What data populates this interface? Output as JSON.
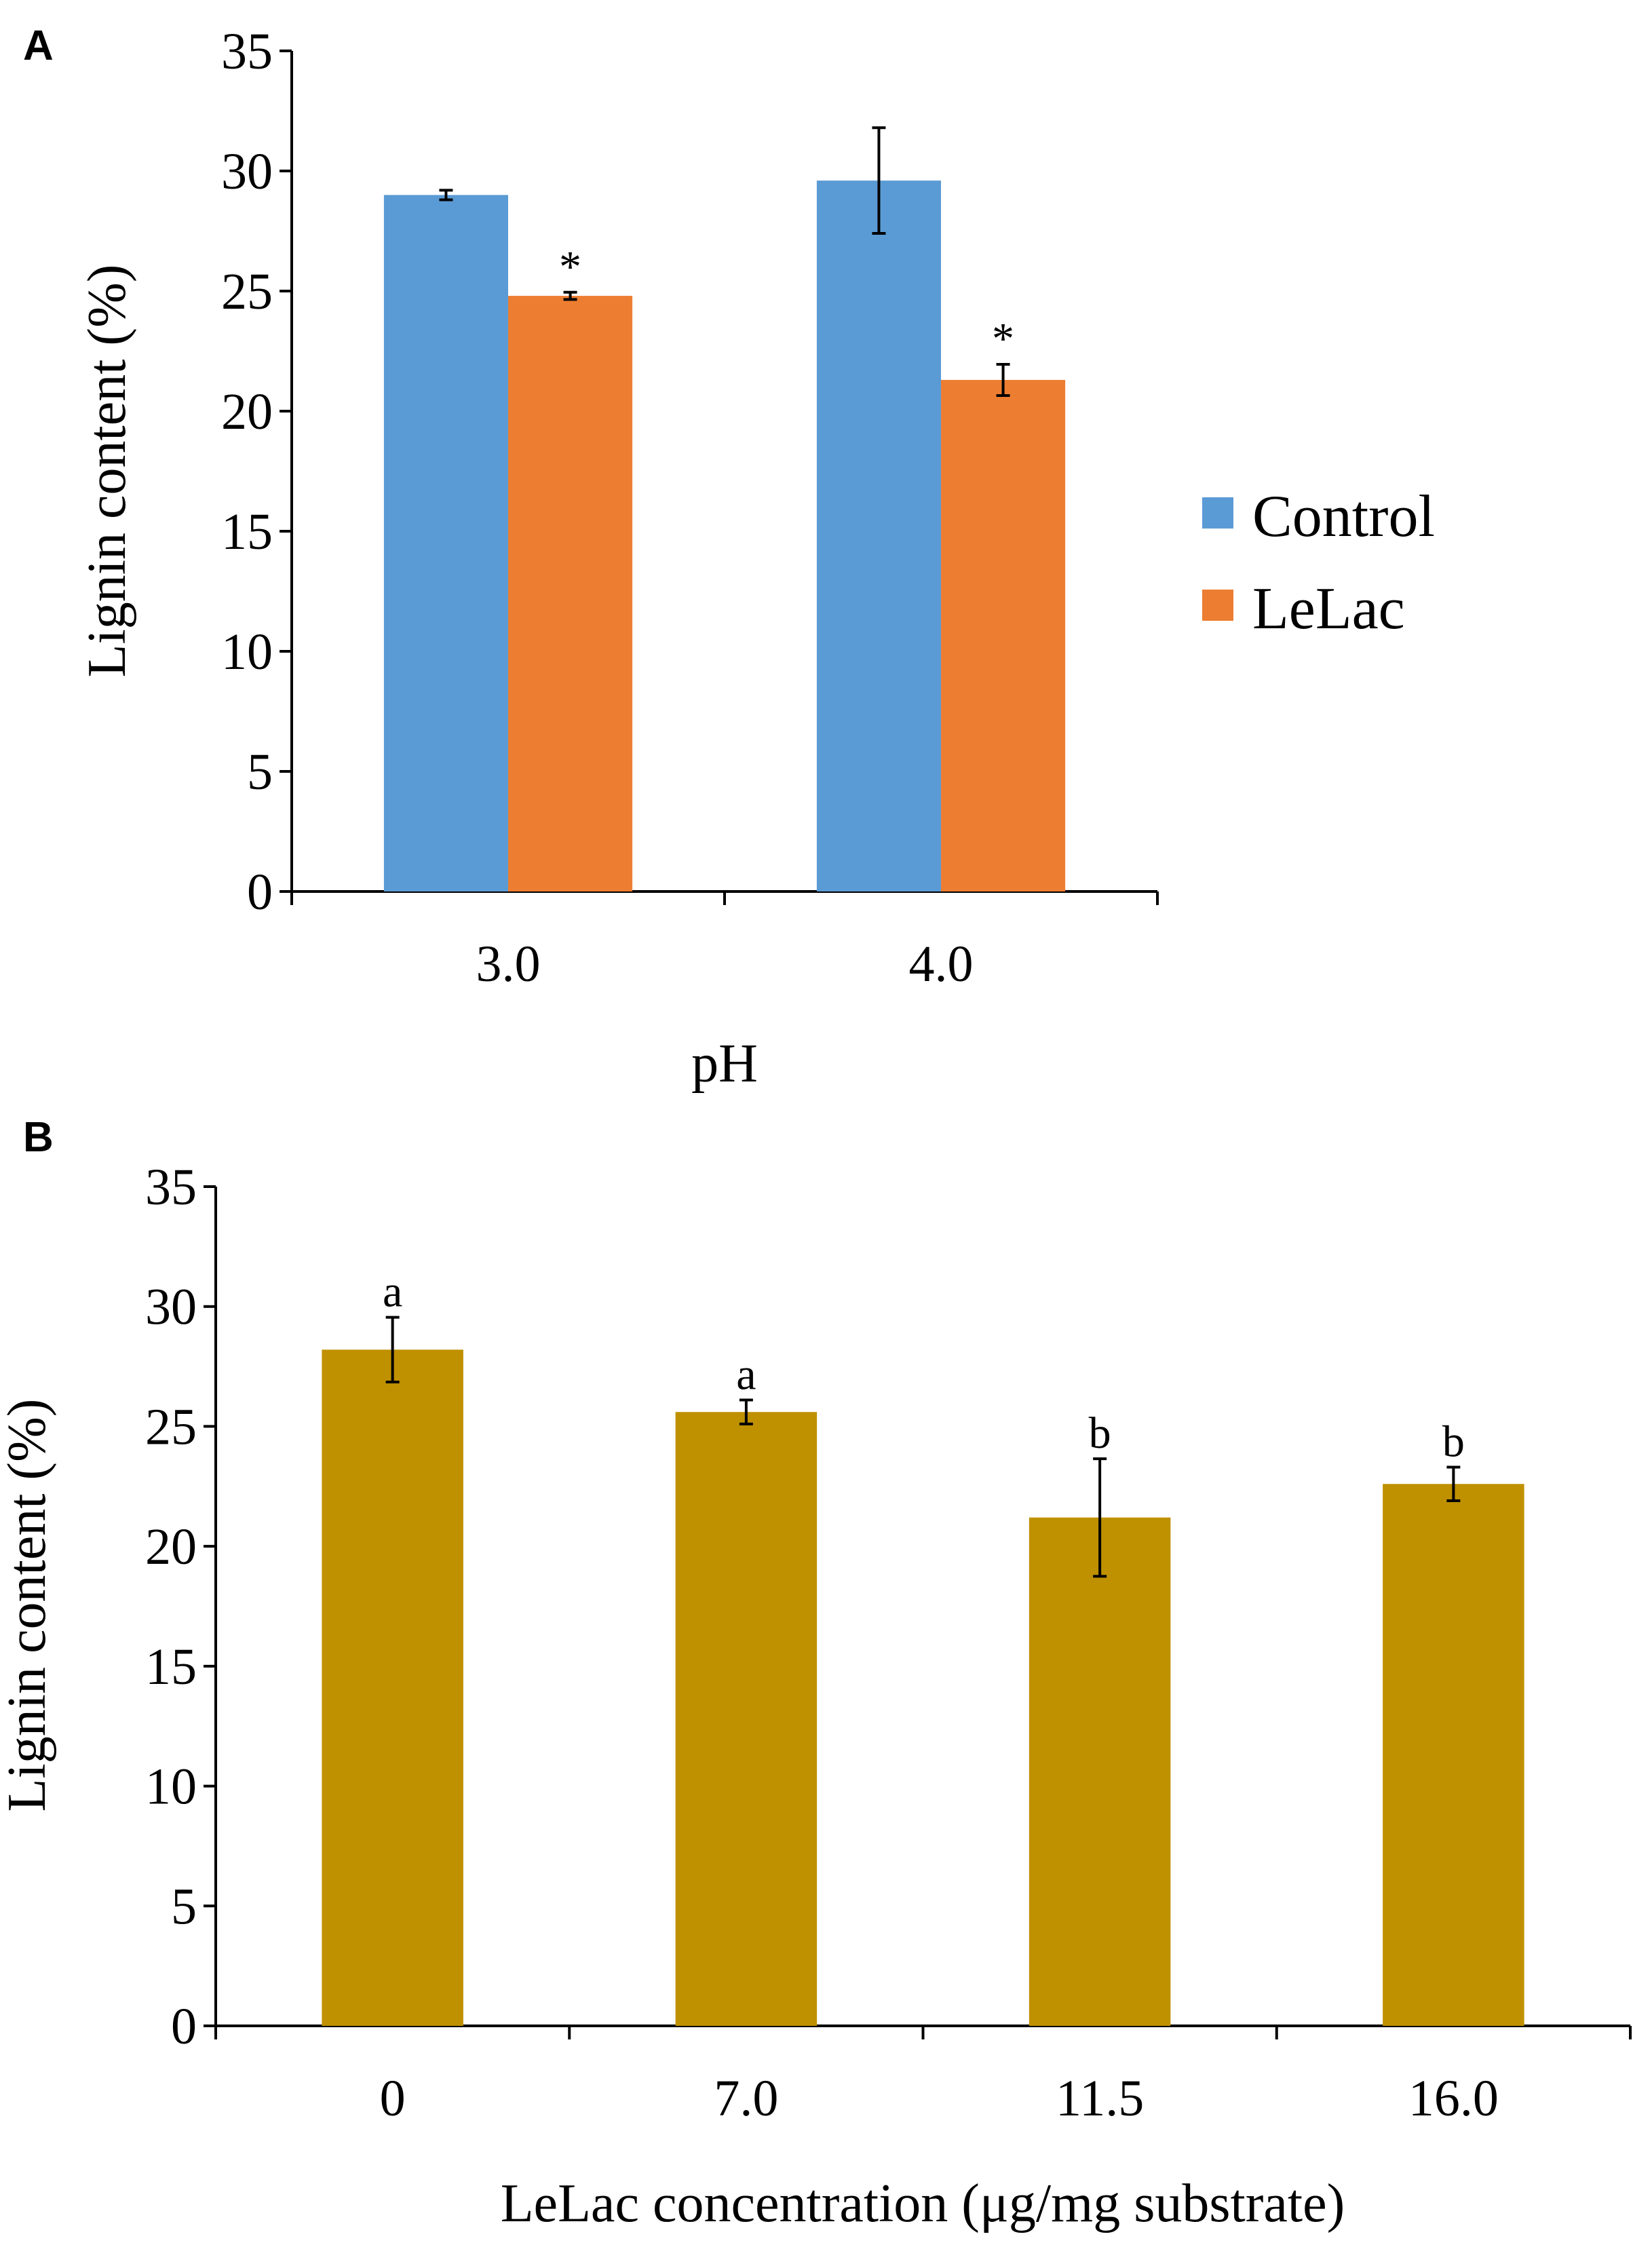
{
  "colors": {
    "control": "#5B9BD5",
    "lelac": "#ED7D31",
    "panel_b_bar": "#BF9000"
  },
  "chart_data": [
    {
      "panel": "A",
      "type": "bar",
      "xlabel": "pH",
      "ylabel": "Lignin content (%)",
      "ylim": [
        0,
        35
      ],
      "yticks": [
        "0",
        "5",
        "10",
        "15",
        "20",
        "25",
        "30",
        "35"
      ],
      "categories": [
        "3.0",
        "4.0"
      ],
      "series": [
        {
          "name": "Control",
          "color_key": "control",
          "values": [
            29.0,
            29.6
          ],
          "errors": [
            0.2,
            2.2
          ],
          "annotations": [
            "",
            ""
          ]
        },
        {
          "name": "LeLac",
          "color_key": "lelac",
          "values": [
            24.8,
            21.3
          ],
          "errors": [
            0.15,
            0.65
          ],
          "annotations": [
            "*",
            "*"
          ]
        }
      ],
      "legend": [
        "Control",
        "LeLac"
      ],
      "legend_position": "right",
      "grid": false
    },
    {
      "panel": "B",
      "type": "bar",
      "xlabel": "LeLac concentration (μg/mg substrate)",
      "ylabel": "Lignin content (%)",
      "ylim": [
        0,
        35
      ],
      "yticks": [
        "0",
        "5",
        "10",
        "15",
        "20",
        "25",
        "30",
        "35"
      ],
      "categories": [
        "0",
        "7.0",
        "11.5",
        "16.0"
      ],
      "series": [
        {
          "name": "Lignin content",
          "color_key": "panel_b_bar",
          "values": [
            28.2,
            25.6,
            21.2,
            22.6
          ],
          "errors": [
            1.35,
            0.5,
            2.45,
            0.7
          ],
          "annotations": [
            "a",
            "a",
            "b",
            "b"
          ]
        }
      ],
      "grid": false
    }
  ]
}
